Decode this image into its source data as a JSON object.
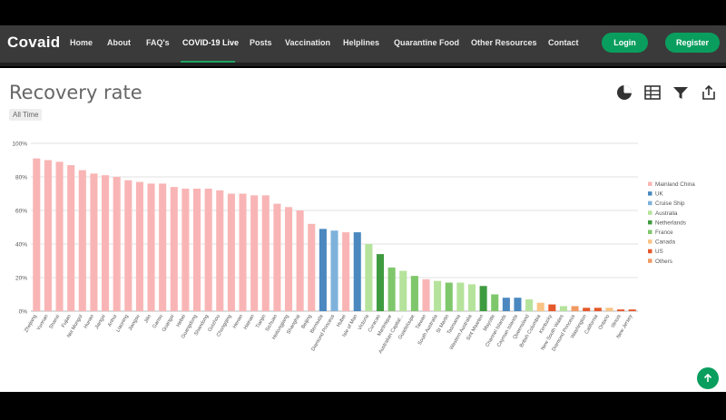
{
  "nav": {
    "brand": "Covaid",
    "items": [
      "Home",
      "About",
      "FAQ's",
      "COVID-19 Live",
      "Posts",
      "Vaccination",
      "Helplines",
      "Quarantine Food",
      "Other Resources",
      "Contact"
    ],
    "active": "COVID-19 Live",
    "login_label": "Login",
    "register_label": "Register"
  },
  "page": {
    "title": "Recovery rate",
    "filter_pill": "All Time"
  },
  "toolbar": {
    "icons": [
      "pie-chart-icon",
      "table-icon",
      "filter-icon",
      "share-icon"
    ]
  },
  "colors": {
    "Mainland China": "#f9b5b5",
    "UK": "#4a88bf",
    "Cruise Ship": "#7fb2db",
    "Australia": "#b5e39b",
    "Netherlands": "#3f9b3f",
    "France": "#7fc76b",
    "Canada": "#f9c486",
    "US": "#e5582a",
    "Others": "#f09a62"
  },
  "chart_data": {
    "type": "bar",
    "title": "Recovery rate",
    "xlabel": "",
    "ylabel": "",
    "ylim": [
      0,
      100
    ],
    "yticks": [
      "0%",
      "20%",
      "40%",
      "60%",
      "80%",
      "100%"
    ],
    "grid": true,
    "legend_position": "right",
    "legend": [
      "Mainland China",
      "UK",
      "Cruise Ship",
      "Australia",
      "Netherlands",
      "France",
      "Canada",
      "US",
      "Others"
    ],
    "categories": [
      "Zhejiang",
      "Yunnan",
      "Shanxi",
      "Fujian",
      "Nei Mongol",
      "Hunan",
      "Jiangxi",
      "Anhui",
      "Liaoning",
      "Jiangsu",
      "Jilin",
      "Gansu",
      "Guangxi",
      "Hebei",
      "Guangdong",
      "Shandong",
      "Guizhou",
      "Chongqing",
      "Henan",
      "Hainan",
      "Tianjin",
      "Sichuan",
      "Heilongjiang",
      "Shanghai",
      "Beijing",
      "Bermuda",
      "Diamond Princess",
      "Hubei",
      "Isle of Man",
      "Victoria",
      "Curacao",
      "Martinique",
      "Australian Capital...",
      "Guadeloupe",
      "Taiwan",
      "South Australia",
      "St Martin",
      "Tasmania",
      "Western Australia",
      "Sint Maarten",
      "Mayotte",
      "Channel Islands",
      "Cayman Islands",
      "Queensland",
      "British Columbia",
      "Kentucky",
      "New South Wales",
      "Diamond Princess",
      "Washington",
      "California",
      "Ontario",
      "Illinois",
      "New Jersey"
    ],
    "values": [
      91,
      90,
      89,
      87,
      84,
      82,
      81,
      80,
      78,
      77,
      76,
      76,
      74,
      73,
      73,
      73,
      72,
      70,
      70,
      69,
      69,
      64,
      62,
      60,
      52,
      49,
      48,
      47,
      47,
      40,
      34,
      26,
      24,
      21,
      19,
      18,
      17,
      17,
      16,
      15,
      10,
      8,
      8,
      7,
      5,
      4,
      3,
      3,
      2,
      2,
      2,
      1,
      1
    ],
    "groups": [
      "Mainland China",
      "Mainland China",
      "Mainland China",
      "Mainland China",
      "Mainland China",
      "Mainland China",
      "Mainland China",
      "Mainland China",
      "Mainland China",
      "Mainland China",
      "Mainland China",
      "Mainland China",
      "Mainland China",
      "Mainland China",
      "Mainland China",
      "Mainland China",
      "Mainland China",
      "Mainland China",
      "Mainland China",
      "Mainland China",
      "Mainland China",
      "Mainland China",
      "Mainland China",
      "Mainland China",
      "Mainland China",
      "UK",
      "Cruise Ship",
      "Mainland China",
      "UK",
      "Australia",
      "Netherlands",
      "France",
      "Australia",
      "France",
      "Mainland China",
      "Australia",
      "France",
      "Australia",
      "Australia",
      "Netherlands",
      "France",
      "UK",
      "UK",
      "Australia",
      "Canada",
      "US",
      "Australia",
      "Others",
      "US",
      "US",
      "Canada",
      "US",
      "US"
    ]
  }
}
